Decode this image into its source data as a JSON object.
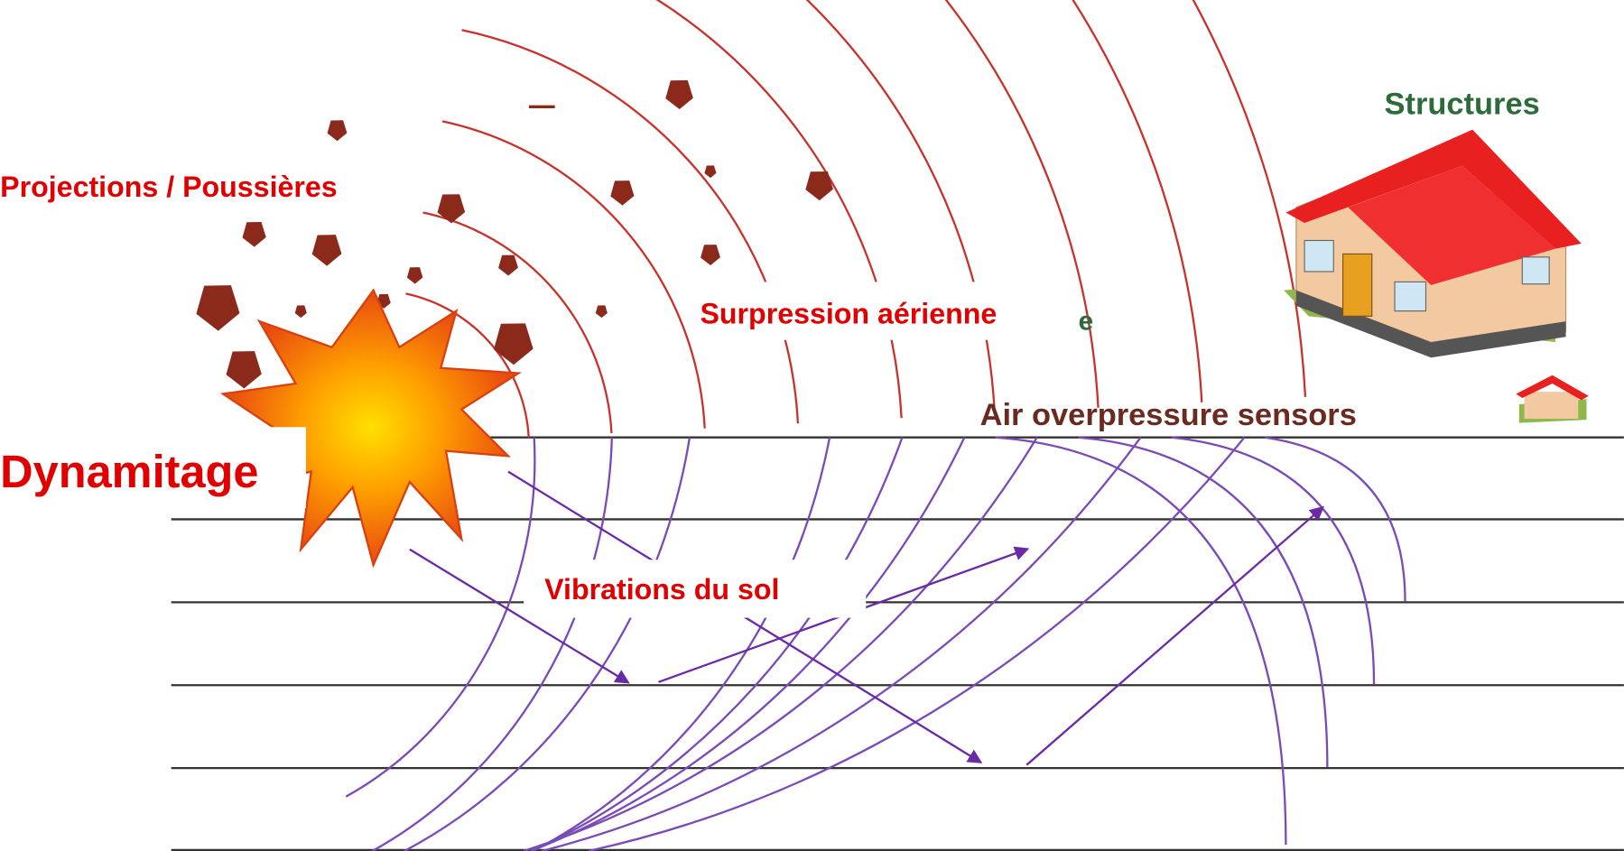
{
  "labels": {
    "projections": "Projections / Poussières",
    "dynamitage": "Dynamitage",
    "surpression": "Surpression aérienne",
    "fragment": "e",
    "vibrations": "Vibrations du sol",
    "structures": "Structures",
    "sensors": "Air overpressure sensors"
  }
}
